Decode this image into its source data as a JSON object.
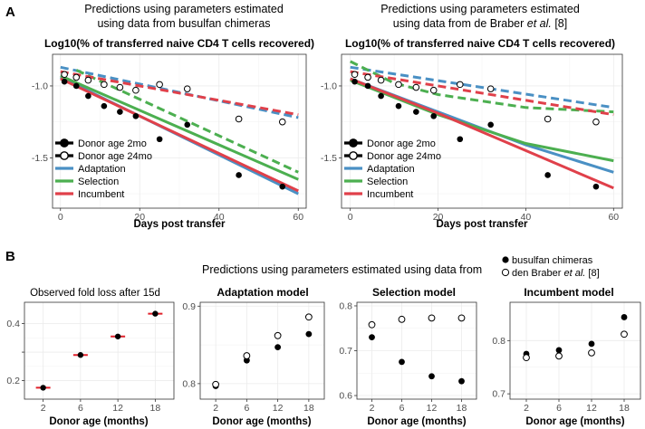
{
  "panel_letters": [
    "A",
    "B"
  ],
  "panel_a": {
    "captions": [
      [
        "Predictions using parameters estimated",
        "using data from busulfan chimeras"
      ],
      [
        "Predictions using parameters estimated",
        "using data from de Braber et al. [8]"
      ]
    ],
    "legend": {
      "donor_2mo": "Donor age 2mo",
      "donor_24mo": "Donor age 24mo",
      "adaptation": "Adaptation",
      "selection": "Selection",
      "incumbent": "Incumbent"
    }
  },
  "panel_b": {
    "caption": "Predictions using parameters estimated using data from",
    "legend": {
      "busulfan": "busulfan chimeras",
      "braber": "den Braber et al. [8]"
    }
  },
  "colors": {
    "adaptation": "#4a90c4",
    "selection": "#4caf50",
    "incumbent": "#e0404a",
    "fold_loss_bar": "#e0202a",
    "points": "#000000"
  },
  "chart_data": [
    {
      "type": "scatter",
      "title": "Log10(% of transferred naive CD4 T cells recovered)",
      "xlabel": "Days post transfer",
      "ylabel": "",
      "xlim": [
        -2,
        62
      ],
      "ylim": [
        -1.85,
        -0.78
      ],
      "xticks": [
        0,
        20,
        40,
        60
      ],
      "yticks": [
        -1.5,
        -1.0
      ],
      "ytick_labels": [
        "-1.5",
        "-1.0"
      ],
      "grid": true,
      "legend_position": "bottom-left",
      "points": {
        "donor_2mo": {
          "x": [
            1,
            4,
            7,
            11,
            15,
            19,
            25,
            32,
            45,
            56
          ],
          "y": [
            -0.97,
            -1.0,
            -1.07,
            -1.14,
            -1.18,
            -1.21,
            -1.37,
            -1.27,
            -1.62,
            -1.7
          ]
        },
        "donor_24mo": {
          "x": [
            1,
            4,
            7,
            11,
            15,
            19,
            25,
            32,
            45,
            56
          ],
          "y": [
            -0.92,
            -0.94,
            -0.96,
            -0.99,
            -1.01,
            -1.03,
            -0.99,
            -1.02,
            -1.23,
            -1.25
          ]
        }
      },
      "series": [
        {
          "name": "Adaptation",
          "style": "solid",
          "x": [
            0,
            60
          ],
          "y": [
            -0.94,
            -1.75
          ]
        },
        {
          "name": "Selection",
          "style": "solid",
          "x": [
            0,
            60
          ],
          "y": [
            -0.93,
            -1.65
          ]
        },
        {
          "name": "Incumbent",
          "style": "solid",
          "x": [
            0,
            60
          ],
          "y": [
            -0.95,
            -1.73
          ]
        },
        {
          "name": "Adaptation",
          "style": "dashed",
          "x": [
            0,
            60
          ],
          "y": [
            -0.87,
            -1.22
          ]
        },
        {
          "name": "Selection",
          "style": "dashed",
          "x": [
            4,
            60
          ],
          "y": [
            -0.89,
            -1.6
          ]
        },
        {
          "name": "Incumbent",
          "style": "dashed",
          "x": [
            0,
            60
          ],
          "y": [
            -0.9,
            -1.2
          ]
        }
      ]
    },
    {
      "type": "scatter",
      "title": "Log10(% of transferred naive CD4 T cells recovered)",
      "xlabel": "Days post transfer",
      "ylabel": "",
      "xlim": [
        -2,
        62
      ],
      "ylim": [
        -1.85,
        -0.78
      ],
      "xticks": [
        0,
        20,
        40,
        60
      ],
      "yticks": [
        -1.5,
        -1.0
      ],
      "ytick_labels": [
        "-1.5",
        "-1.0"
      ],
      "grid": true,
      "legend_position": "bottom-left",
      "points": {
        "donor_2mo": {
          "x": [
            1,
            4,
            7,
            11,
            15,
            19,
            25,
            32,
            45,
            56
          ],
          "y": [
            -0.97,
            -1.0,
            -1.07,
            -1.14,
            -1.18,
            -1.21,
            -1.37,
            -1.27,
            -1.62,
            -1.7
          ]
        },
        "donor_24mo": {
          "x": [
            1,
            4,
            7,
            11,
            15,
            19,
            25,
            32,
            45,
            56
          ],
          "y": [
            -0.92,
            -0.94,
            -0.96,
            -0.99,
            -1.01,
            -1.03,
            -0.99,
            -1.02,
            -1.23,
            -1.25
          ]
        }
      },
      "series": [
        {
          "name": "Adaptation",
          "style": "solid",
          "x": [
            0,
            20,
            40,
            60
          ],
          "y": [
            -0.95,
            -1.18,
            -1.41,
            -1.6
          ]
        },
        {
          "name": "Selection",
          "style": "solid",
          "x": [
            0,
            20,
            40,
            60
          ],
          "y": [
            -0.96,
            -1.2,
            -1.4,
            -1.52
          ]
        },
        {
          "name": "Incumbent",
          "style": "solid",
          "x": [
            0,
            20,
            40,
            60
          ],
          "y": [
            -0.95,
            -1.19,
            -1.45,
            -1.71
          ]
        },
        {
          "name": "Adaptation",
          "style": "dashed",
          "x": [
            0,
            60
          ],
          "y": [
            -0.87,
            -1.15
          ]
        },
        {
          "name": "Selection",
          "style": "dashed",
          "x": [
            0,
            10,
            20,
            40,
            60
          ],
          "y": [
            -0.83,
            -0.98,
            -1.06,
            -1.15,
            -1.18
          ]
        },
        {
          "name": "Incumbent",
          "style": "dashed",
          "x": [
            0,
            60
          ],
          "y": [
            -0.9,
            -1.2
          ]
        }
      ]
    },
    {
      "type": "scatter",
      "title": "Observed fold loss after 15d",
      "xlabel": "Donor age (months)",
      "categories": [
        "2",
        "6",
        "12",
        "18"
      ],
      "values": [
        0.175,
        0.29,
        0.355,
        0.435
      ],
      "ylim": [
        0.135,
        0.475
      ],
      "yticks": [
        0.2,
        0.3,
        0.4
      ],
      "ytick_labels": [
        "0.2",
        "",
        "0.4"
      ],
      "grid": true
    },
    {
      "type": "scatter",
      "title": "Adaptation model",
      "xlabel": "Donor age (months)",
      "categories": [
        "2",
        "6",
        "12",
        "18"
      ],
      "series": [
        {
          "name": "busulfan chimeras",
          "marker": "filled",
          "values": [
            0.797,
            0.83,
            0.847,
            0.864
          ]
        },
        {
          "name": "den Braber et al. [8]",
          "marker": "open",
          "values": [
            0.799,
            0.836,
            0.862,
            0.886
          ]
        }
      ],
      "ylim": [
        0.78,
        0.905
      ],
      "yticks": [
        0.8,
        0.9
      ],
      "ytick_labels": [
        "0.8",
        "0.9"
      ],
      "grid": true
    },
    {
      "type": "scatter",
      "title": "Selection model",
      "xlabel": "Donor age (months)",
      "categories": [
        "2",
        "6",
        "12",
        "18"
      ],
      "series": [
        {
          "name": "busulfan chimeras",
          "marker": "filled",
          "values": [
            0.73,
            0.675,
            0.643,
            0.632
          ]
        },
        {
          "name": "den Braber et al. [8]",
          "marker": "open",
          "values": [
            0.758,
            0.77,
            0.773,
            0.773
          ]
        }
      ],
      "ylim": [
        0.592,
        0.808
      ],
      "yticks": [
        0.6,
        0.7,
        0.8
      ],
      "ytick_labels": [
        "0.6",
        "0.7",
        "0.8"
      ],
      "grid": true
    },
    {
      "type": "scatter",
      "title": "Incumbent model",
      "xlabel": "Donor age (months)",
      "categories": [
        "2",
        "6",
        "12",
        "18"
      ],
      "series": [
        {
          "name": "busulfan chimeras",
          "marker": "filled",
          "values": [
            0.775,
            0.782,
            0.794,
            0.844
          ]
        },
        {
          "name": "den Braber et al. [8]",
          "marker": "open",
          "values": [
            0.768,
            0.771,
            0.777,
            0.812
          ]
        }
      ],
      "ylim": [
        0.69,
        0.872
      ],
      "yticks": [
        0.7,
        0.8
      ],
      "ytick_labels": [
        "0.7",
        "0.8"
      ],
      "grid": true
    }
  ]
}
